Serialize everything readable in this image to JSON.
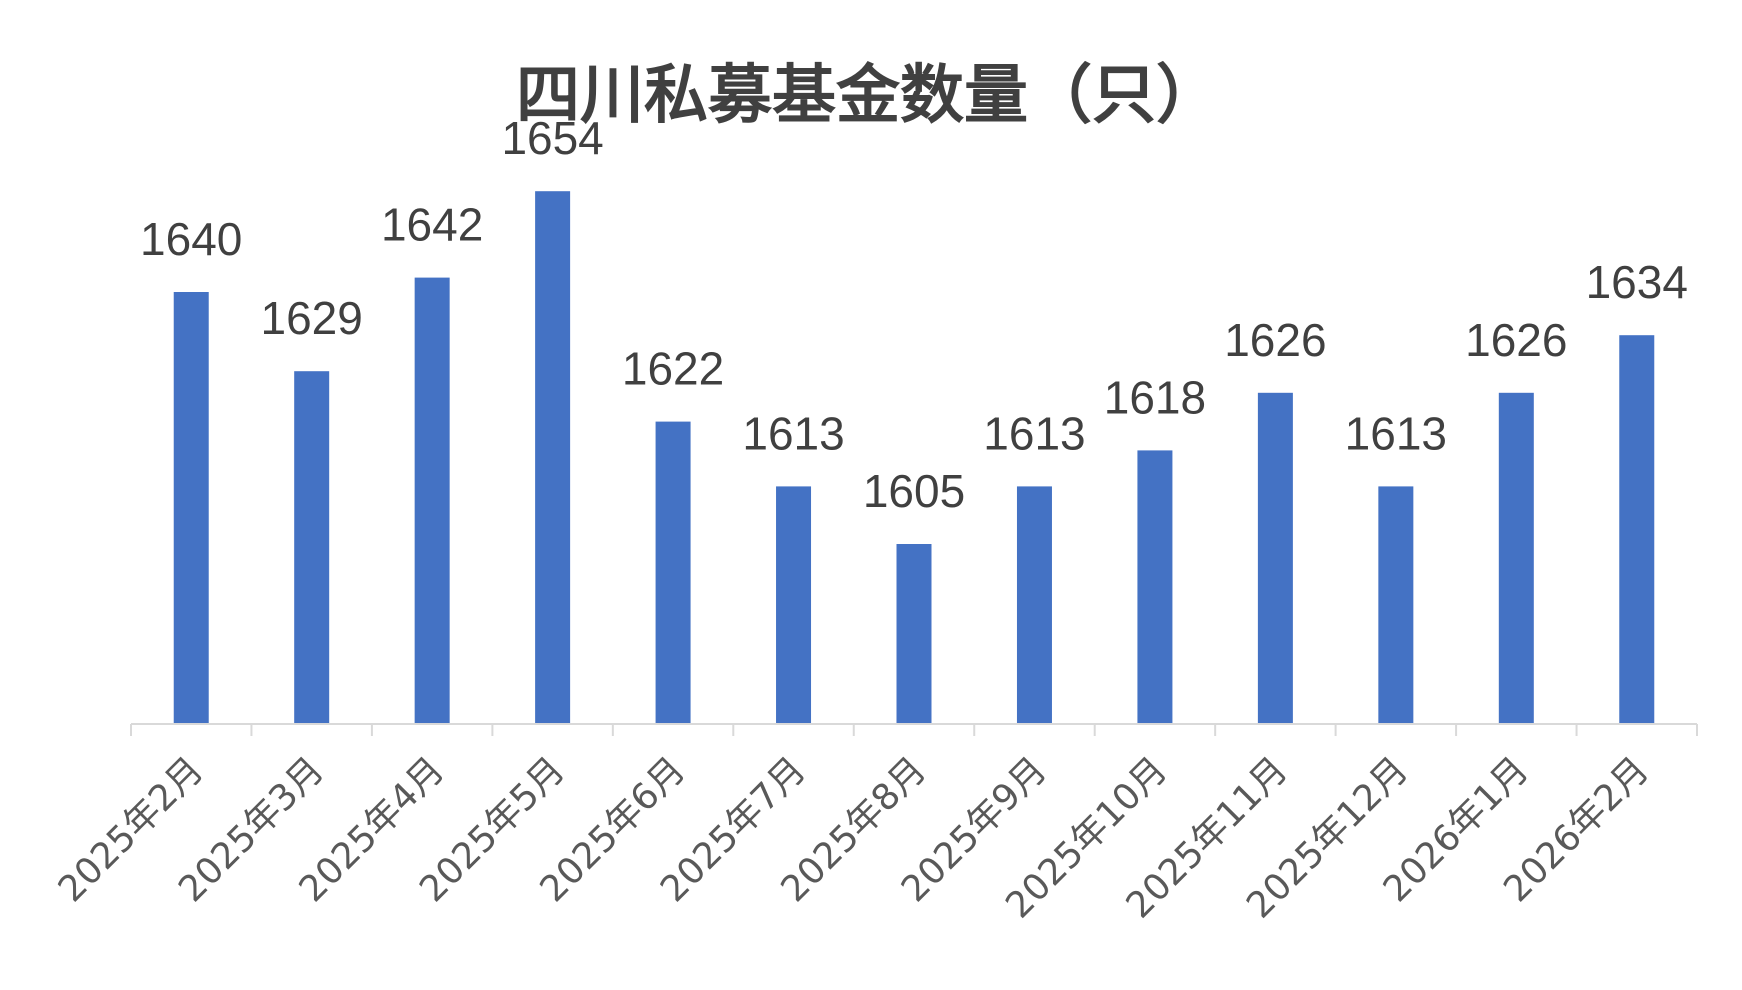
{
  "chart_data": {
    "type": "bar",
    "title": "四川私募基金数量（只）",
    "categories": [
      "2025年2月",
      "2025年3月",
      "2025年4月",
      "2025年5月",
      "2025年6月",
      "2025年7月",
      "2025年8月",
      "2025年9月",
      "2025年10月",
      "2025年11月",
      "2025年12月",
      "2026年1月",
      "2026年2月"
    ],
    "values": [
      1640,
      1629,
      1642,
      1654,
      1622,
      1613,
      1605,
      1613,
      1618,
      1626,
      1613,
      1626,
      1634
    ],
    "data_labels": [
      "1640",
      "1629",
      "1642",
      "1654",
      "1622",
      "1613",
      "1605",
      "1613",
      "1618",
      "1626",
      "1613",
      "1626",
      "1634"
    ],
    "bar_color": "#4472C4",
    "axis_color": "#D9D9D9",
    "xlabel": "",
    "ylabel": "",
    "ylim": [
      1580,
      1660
    ],
    "grid": false,
    "legend": "none"
  }
}
